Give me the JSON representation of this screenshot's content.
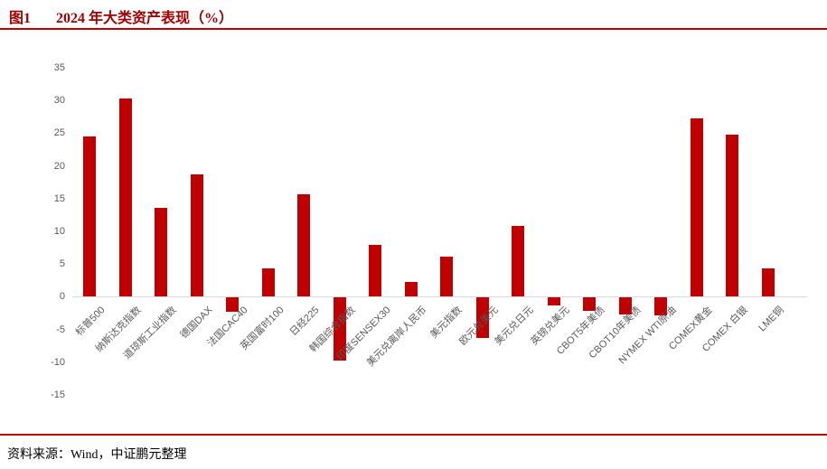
{
  "header": {
    "figure_label": "图1",
    "title": "2024 年大类资产表现（%）"
  },
  "footer": {
    "source": "资料来源：Wind，中证鹏元整理"
  },
  "colors": {
    "bar": "#C00000",
    "accent_line": "#C00000",
    "title_text": "#A00000",
    "axis_text": "#595959",
    "axis_line": "#D9D9D9"
  },
  "chart_data": {
    "type": "bar",
    "title": "2024 年大类资产表现（%）",
    "xlabel": "",
    "ylabel": "",
    "ylim": [
      -15,
      35
    ],
    "ytick_step": 5,
    "grid": false,
    "legend": "none",
    "bar_color": "#C00000",
    "categories": [
      "标普500",
      "纳斯达克指数",
      "道琼斯工业指数",
      "德国DAX",
      "法国CAC40",
      "英国富时100",
      "日经225",
      "韩国综合指数",
      "印度SENSEX30",
      "美元兑离岸人民币",
      "美元指数",
      "欧元兑美元",
      "美元兑日元",
      "英镑兑美元",
      "CBOT5年美债",
      "CBOT10年美债",
      "NYMEX WTI原油",
      "COMEX黄金",
      "COMEX 白银",
      "LME铜"
    ],
    "values": [
      24.5,
      30.3,
      13.6,
      18.7,
      -2.2,
      4.4,
      15.6,
      -9.6,
      7.9,
      2.3,
      6.1,
      -6.2,
      10.8,
      -1.2,
      -2.0,
      -2.6,
      -2.7,
      27.3,
      24.8,
      4.4
    ]
  }
}
